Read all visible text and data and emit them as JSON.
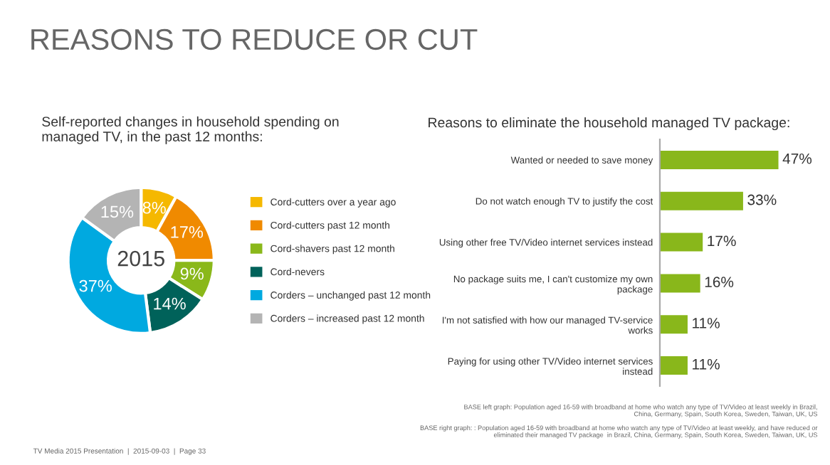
{
  "chart_data": [
    {
      "type": "donut",
      "title": "REASONS TO REDUCE OR CUT",
      "subtitle": "Self-reported changes in household spending on\nmanaged TV, in the past 12 months:",
      "categories": [
        "Cord-cutters over a year ago",
        "Cord-cutters past 12 month",
        "Cord-shavers past 12 month",
        "Cord-nevers",
        "Corders – unchanged past 12 month",
        "Corders – increased past 12 month"
      ],
      "values": [
        8,
        17,
        9,
        14,
        37,
        15
      ],
      "colors": [
        "#f5b800",
        "#f08a00",
        "#8ab81a",
        "#00625a",
        "#00a9e0",
        "#b4b4b4"
      ],
      "value_labels": [
        "8%",
        "17%",
        "9%",
        "14%",
        "37%",
        "15%"
      ],
      "legend": "right",
      "annotations": [
        "2015",
        "TV Media 2015 Presentation  |  2015-09-03  |  Page 33"
      ]
    },
    {
      "type": "bar",
      "orientation": "horizontal",
      "title": "Reasons to eliminate the household managed TV package:",
      "categories": [
        "Wanted or needed to save money",
        "Do not watch enough TV to justify the cost",
        "Using other free TV/Video internet services instead",
        "No package suits me, I can't customize my own\npackage",
        "I'm not satisfied with how our managed TV-service\nworks",
        "Paying for using other TV/Video internet services\ninstead"
      ],
      "values": [
        47,
        33,
        17,
        16,
        11,
        11
      ],
      "color": "#89b71b",
      "value_labels": [
        "47%",
        "33%",
        "17%",
        "16%",
        "11%",
        "11%"
      ],
      "tick_labels": "y",
      "annotations": [
        "BASE left graph: Population aged 16-59 with broadband at home who watch any type of TV/Video at least weekly in Brazil,\nChina, Germany, Spain, South Korea, Sweden, Taiwan, UK, US",
        "BASE right graph: : Population aged 16-59 with broadband at home who watch any type of TV/Video at least weekly, and have reduced or\neliminated their managed TV package  in Brazil, China, Germany, Spain, South Korea, Sweden, Taiwan, UK, US"
      ]
    }
  ]
}
